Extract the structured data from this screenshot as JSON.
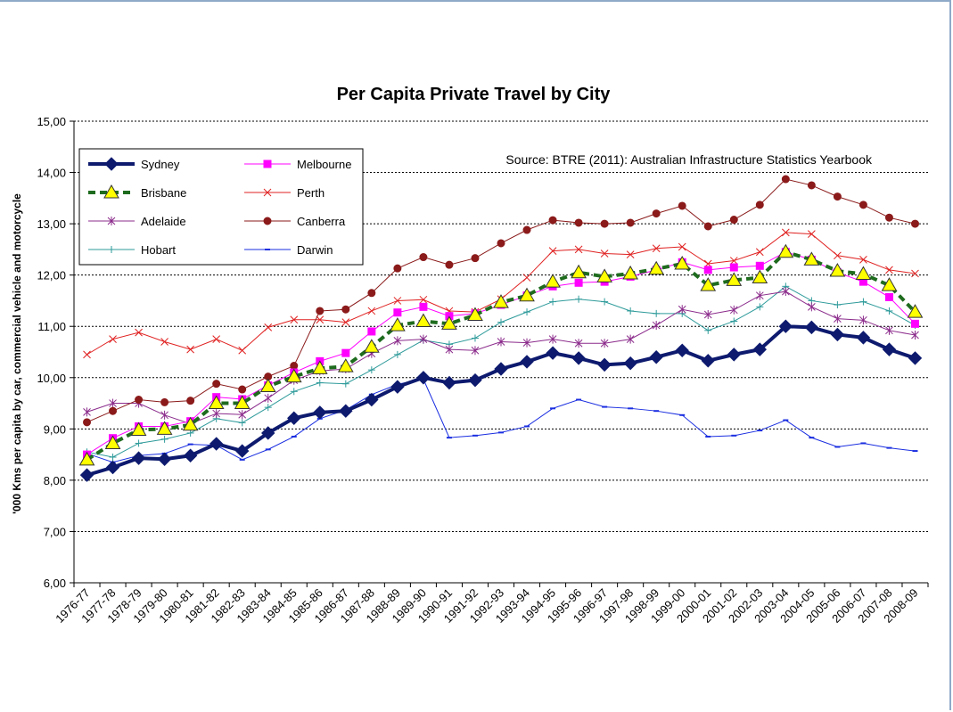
{
  "chart_data": {
    "type": "line",
    "title": "Per Capita Private Travel by City",
    "xlabel": "",
    "ylabel": "'000 Kms per capita by car, commercial vehicle and motorcycle",
    "ylim": [
      6,
      15
    ],
    "yticks": [
      "6,00",
      "7,00",
      "8,00",
      "9,00",
      "10,00",
      "11,00",
      "12,00",
      "13,00",
      "14,00",
      "15,00"
    ],
    "grid": true,
    "legend_position": "top-left",
    "annotation": "Source: BTRE (2011): Australian Infrastructure Statistics Yearbook",
    "categories": [
      "1976-77",
      "1977-78",
      "1978-79",
      "1979-80",
      "1980-81",
      "1981-82",
      "1982-83",
      "1983-84",
      "1984-85",
      "1985-86",
      "1986-87",
      "1987-88",
      "1988-89",
      "1989-90",
      "1990-91",
      "1991-92",
      "1992-93",
      "1993-94",
      "1994-95",
      "1995-96",
      "1996-97",
      "1997-98",
      "1998-99",
      "1999-00",
      "2000-01",
      "2001-02",
      "2002-03",
      "2003-04",
      "2004-05",
      "2005-06",
      "2006-07",
      "2007-08",
      "2008-09"
    ],
    "series": [
      {
        "name": "Sydney",
        "color": "#0d1a6e",
        "style": "thick-diamond",
        "values": [
          8.1,
          8.25,
          8.43,
          8.41,
          8.48,
          8.71,
          8.57,
          8.92,
          9.21,
          9.32,
          9.35,
          9.57,
          9.82,
          10.0,
          9.9,
          9.95,
          10.17,
          10.31,
          10.48,
          10.38,
          10.25,
          10.28,
          10.4,
          10.53,
          10.33,
          10.45,
          10.55,
          11.0,
          10.98,
          10.84,
          10.78,
          10.55,
          10.38
        ]
      },
      {
        "name": "Melbourne",
        "color": "#ff00ff",
        "style": "square",
        "values": [
          8.5,
          8.82,
          9.05,
          9.05,
          9.15,
          9.62,
          9.58,
          9.85,
          10.1,
          10.32,
          10.48,
          10.9,
          11.27,
          11.38,
          11.2,
          11.25,
          11.42,
          11.6,
          11.78,
          11.85,
          11.87,
          11.97,
          12.1,
          12.25,
          12.1,
          12.15,
          12.18,
          12.45,
          12.3,
          12.05,
          11.87,
          11.57,
          11.05
        ]
      },
      {
        "name": "Brisbane",
        "color": "#1e6b1e",
        "style": "dashed-triangle",
        "values": [
          8.4,
          8.72,
          8.98,
          9.0,
          9.08,
          9.5,
          9.5,
          9.83,
          10.02,
          10.18,
          10.22,
          10.6,
          11.02,
          11.1,
          11.05,
          11.22,
          11.47,
          11.6,
          11.87,
          12.05,
          11.97,
          12.03,
          12.12,
          12.22,
          11.8,
          11.9,
          11.95,
          12.45,
          12.3,
          12.08,
          12.02,
          11.8,
          11.28
        ]
      },
      {
        "name": "Perth",
        "color": "#e02020",
        "style": "x",
        "values": [
          10.45,
          10.75,
          10.88,
          10.7,
          10.55,
          10.75,
          10.53,
          10.98,
          11.13,
          11.13,
          11.08,
          11.3,
          11.5,
          11.52,
          11.3,
          11.28,
          11.53,
          11.95,
          12.47,
          12.5,
          12.42,
          12.4,
          12.52,
          12.55,
          12.22,
          12.28,
          12.45,
          12.83,
          12.8,
          12.38,
          12.3,
          12.1,
          12.03
        ]
      },
      {
        "name": "Adelaide",
        "color": "#8b2b8b",
        "style": "star",
        "values": [
          9.33,
          9.5,
          9.5,
          9.27,
          9.1,
          9.3,
          9.28,
          9.6,
          9.95,
          10.13,
          10.17,
          10.47,
          10.72,
          10.75,
          10.55,
          10.53,
          10.7,
          10.68,
          10.75,
          10.67,
          10.67,
          10.75,
          11.02,
          11.33,
          11.23,
          11.32,
          11.6,
          11.68,
          11.38,
          11.15,
          11.12,
          10.92,
          10.83
        ]
      },
      {
        "name": "Canberra",
        "color": "#8b1a1a",
        "style": "circle",
        "values": [
          9.13,
          9.35,
          9.57,
          9.52,
          9.55,
          9.88,
          9.77,
          10.02,
          10.23,
          11.3,
          11.33,
          11.65,
          12.13,
          12.35,
          12.2,
          12.33,
          12.62,
          12.88,
          13.07,
          13.02,
          13.0,
          13.02,
          13.2,
          13.35,
          12.95,
          13.08,
          13.37,
          13.87,
          13.75,
          13.53,
          13.37,
          13.12,
          13.0
        ]
      },
      {
        "name": "Hobart",
        "color": "#2e9a9a",
        "style": "plus",
        "values": [
          8.55,
          8.45,
          8.72,
          8.8,
          8.92,
          9.2,
          9.12,
          9.42,
          9.73,
          9.9,
          9.88,
          10.15,
          10.45,
          10.73,
          10.65,
          10.77,
          11.08,
          11.28,
          11.48,
          11.53,
          11.48,
          11.3,
          11.25,
          11.25,
          10.92,
          11.1,
          11.38,
          11.78,
          11.5,
          11.42,
          11.48,
          11.3,
          11.02
        ]
      },
      {
        "name": "Darwin",
        "color": "#1a2ee0",
        "style": "dash",
        "values": [
          8.52,
          8.35,
          8.48,
          8.52,
          8.7,
          8.68,
          8.4,
          8.6,
          8.85,
          9.2,
          9.37,
          9.67,
          9.87,
          9.97,
          8.83,
          8.87,
          8.93,
          9.05,
          9.4,
          9.57,
          9.43,
          9.4,
          9.35,
          9.27,
          8.85,
          8.87,
          8.97,
          9.17,
          8.83,
          8.65,
          8.72,
          8.63,
          8.57
        ]
      }
    ]
  }
}
